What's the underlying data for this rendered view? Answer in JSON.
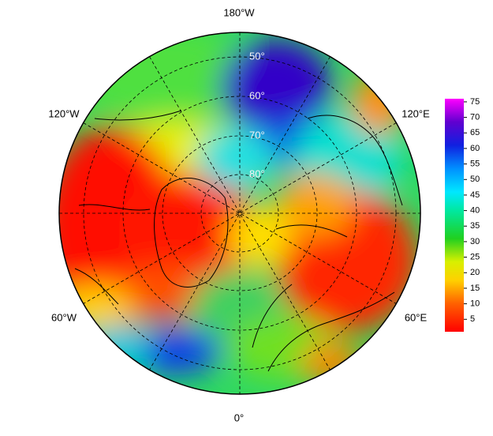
{
  "map": {
    "longitude_labels": {
      "top": "180°W",
      "bottom": "0°",
      "upper_left": "120°W",
      "upper_right": "120°E",
      "lower_left": "60°W",
      "lower_right": "60°E"
    },
    "latitude_labels": [
      "50°",
      "60°",
      "70°",
      "80°"
    ],
    "colorbar": {
      "lim": [
        1,
        76
      ],
      "ticks": [
        5,
        10,
        15,
        20,
        25,
        30,
        35,
        40,
        45,
        50,
        55,
        60,
        65,
        70,
        75
      ]
    }
  }
}
